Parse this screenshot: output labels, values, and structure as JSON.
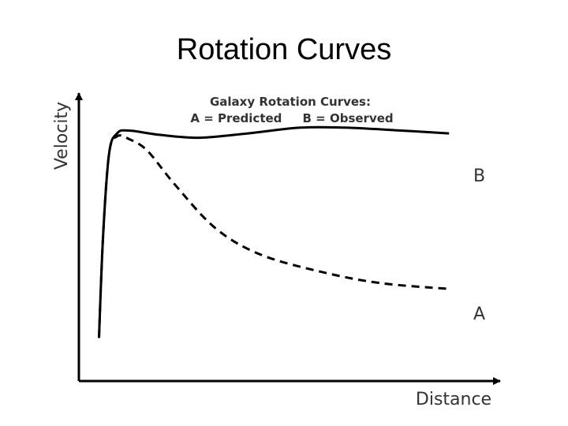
{
  "slide": {
    "title": "Rotation Curves"
  },
  "chart_data": {
    "type": "line",
    "title": "Galaxy Rotation Curves:",
    "subtitle": "A = Predicted     B = Observed",
    "xlabel": "Distance",
    "ylabel": "Velocity",
    "xlim": [
      0,
      10
    ],
    "ylim": [
      0,
      10
    ],
    "grid": false,
    "ticks": false,
    "series": [
      {
        "name": "B",
        "style": "solid",
        "color": "#000000",
        "x": [
          0.5,
          0.6,
          0.75,
          0.95,
          1.25,
          2,
          3,
          4.2,
          5.5,
          6.6,
          8,
          9.2
        ],
        "y": [
          1.5,
          5,
          7.9,
          8.6,
          8.7,
          8.55,
          8.45,
          8.6,
          8.8,
          8.8,
          8.7,
          8.6
        ]
      },
      {
        "name": "A",
        "style": "dashed",
        "color": "#000000",
        "x": [
          0.5,
          0.6,
          0.75,
          0.95,
          1.25,
          1.7,
          2.4,
          3.4,
          4.5,
          6,
          7.5,
          9.2
        ],
        "y": [
          1.5,
          5,
          7.9,
          8.5,
          8.4,
          8.0,
          6.8,
          5.3,
          4.4,
          3.8,
          3.4,
          3.2
        ]
      }
    ]
  }
}
